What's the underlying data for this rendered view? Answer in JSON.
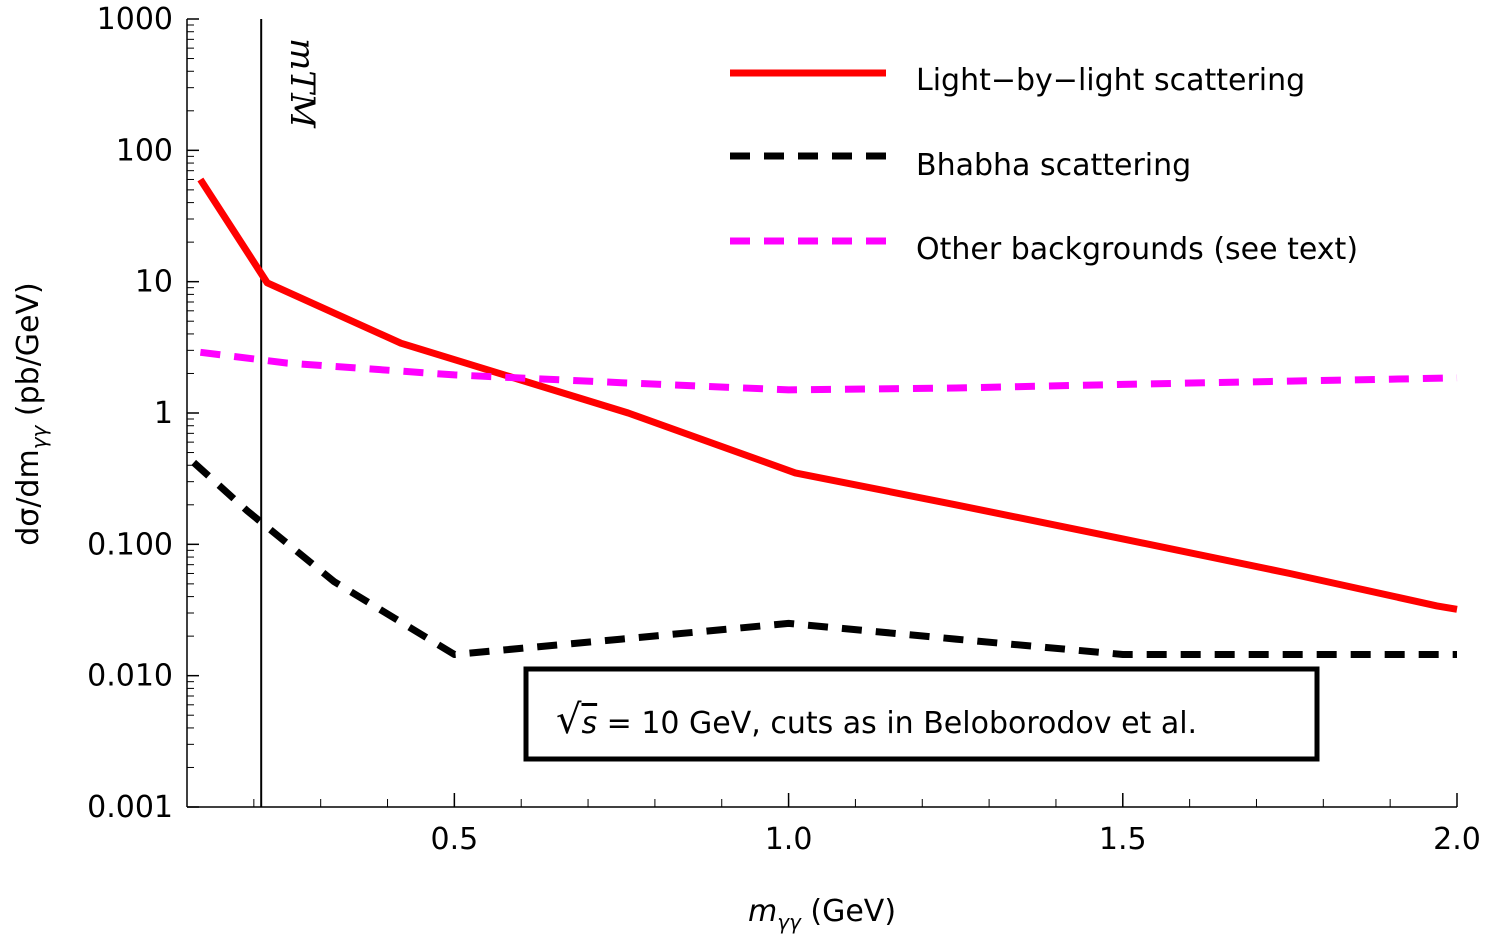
{
  "chart_data": {
    "type": "line",
    "x_axis": {
      "label_main": "m",
      "label_sub": "γγ",
      "label_rest": " (GeV)",
      "range": [
        0.1,
        2.0
      ],
      "ticks": [
        0.5,
        1.0,
        1.5,
        2.0
      ],
      "tick_labels": [
        "0.5",
        "1.0",
        "1.5",
        "2.0"
      ],
      "minor_step": 0.1
    },
    "y_axis": {
      "label_pre": "dσ/dm",
      "label_sub": "γγ",
      "label_post": " (pb/GeV)",
      "scale": "log",
      "range": [
        0.001,
        1000
      ],
      "ticks": [
        0.001,
        0.01,
        0.1,
        1,
        10,
        100,
        1000
      ],
      "tick_labels": [
        "0.001",
        "0.010",
        "0.100",
        "1",
        "10",
        "100",
        "1000"
      ]
    },
    "series": [
      {
        "name": "Light−by−light scattering",
        "color": "#ff0000",
        "style": "solid",
        "x": [
          0.12,
          0.22,
          0.42,
          0.76,
          1.01,
          1.25,
          1.5,
          1.75,
          1.97,
          2.0
        ],
        "y": [
          60,
          9.8,
          3.4,
          1.0,
          0.35,
          0.2,
          0.11,
          0.06,
          0.034,
          0.032
        ]
      },
      {
        "name": "Bhabha scattering",
        "color": "#000000",
        "style": "dashed",
        "x": [
          0.11,
          0.19,
          0.32,
          0.5,
          0.75,
          1.0,
          1.25,
          1.5,
          1.75,
          2.0
        ],
        "y": [
          0.42,
          0.18,
          0.052,
          0.0145,
          0.019,
          0.025,
          0.019,
          0.0145,
          0.0145,
          0.0145
        ]
      },
      {
        "name": "Other backgrounds (see text)",
        "color": "#ff00ff",
        "style": "dashed",
        "x": [
          0.12,
          0.25,
          0.5,
          0.75,
          1.0,
          1.25,
          1.5,
          1.75,
          2.0
        ],
        "y": [
          2.9,
          2.4,
          1.95,
          1.7,
          1.5,
          1.55,
          1.65,
          1.75,
          1.85
        ]
      }
    ],
    "vertical_line": {
      "x": 0.211,
      "label": "mTM"
    },
    "annotation": {
      "sqrt_symbol": "√",
      "sqrt_arg": "s",
      "text": " = 10 GeV, cuts as in Beloborodov et al."
    },
    "legend_position": "top-right",
    "grid": false
  }
}
